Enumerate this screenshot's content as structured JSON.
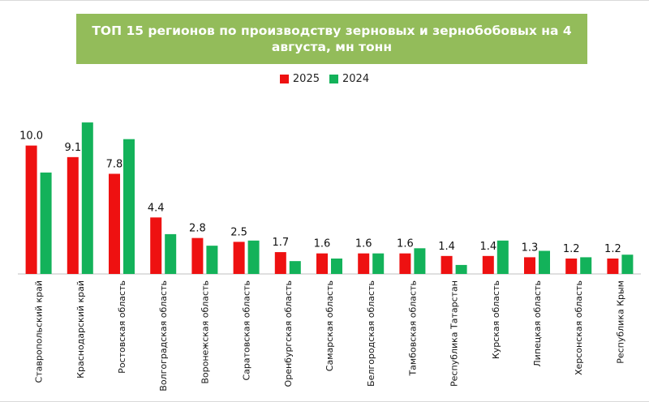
{
  "chart_data": {
    "type": "bar",
    "title": "ТОП 15 регионов по производству зерновых и зернобобовых на 4 августа, мн тонн",
    "categories": [
      "Ставропольский край",
      "Краснодарский край",
      "Ростовская область",
      "Волгоградская область",
      "Воронежская область",
      "Саратовская область",
      "Оренбургская область",
      "Самарская область",
      "Белгородская область",
      "Тамбовская область",
      "Республика Татарстан",
      "Курская область",
      "Липецкая область",
      "Херсонская область",
      "Республика Крым"
    ],
    "series": [
      {
        "name": "2025",
        "color": "#ee1111",
        "values": [
          10.0,
          9.1,
          7.8,
          4.4,
          2.8,
          2.5,
          1.7,
          1.6,
          1.6,
          1.6,
          1.4,
          1.4,
          1.3,
          1.2,
          1.2
        ]
      },
      {
        "name": "2024",
        "color": "#13b25a",
        "values": [
          7.9,
          11.8,
          10.5,
          3.1,
          2.2,
          2.6,
          1.0,
          1.2,
          1.6,
          2.0,
          0.7,
          2.6,
          1.8,
          1.3,
          1.5
        ]
      }
    ],
    "data_labels": [
      "10.0",
      "9.1",
      "7.8",
      "4.4",
      "2.8",
      "2.5",
      "1.7",
      "1.6",
      "1.6",
      "1.6",
      "1.4",
      "1.4",
      "1.3",
      "1.2",
      "1.2"
    ],
    "ylim": [
      0,
      12.5
    ],
    "grid": false,
    "legend": "top-center"
  }
}
